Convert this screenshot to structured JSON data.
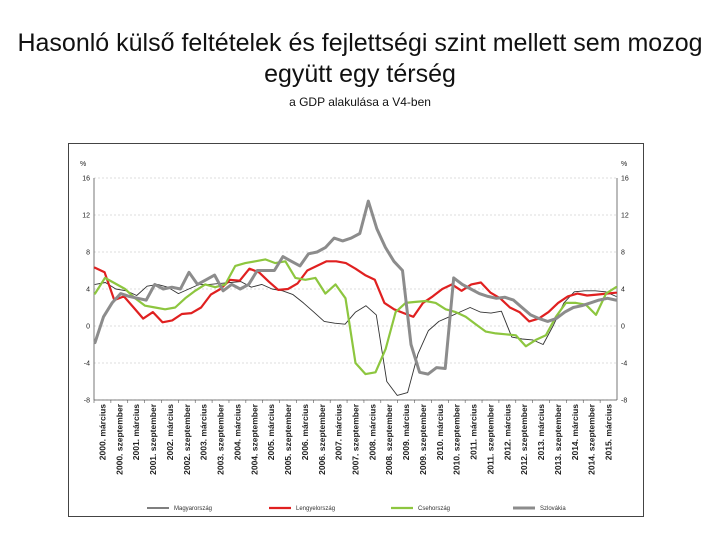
{
  "title": "Hasonló külső feltételek és fejlettségi szint mellett sem mozog együtt egy térség",
  "subtitle": "a GDP alakulása a V4-ben",
  "chart_data": {
    "type": "line",
    "yunit": "%",
    "ylim": [
      -8,
      16
    ],
    "yticks": [
      -8,
      -4,
      0,
      4,
      8,
      12,
      16
    ],
    "x_labels": [
      "2000. március",
      "2000. szeptember",
      "2001. március",
      "2001. szeptember",
      "2002. március",
      "2002. szeptember",
      "2003. március",
      "2003. szeptember",
      "2004. március",
      "2004. szeptember",
      "2005. március",
      "2005. szeptember",
      "2006. március",
      "2006. szeptember",
      "2007. március",
      "2007. szeptember",
      "2008. március",
      "2008. szeptember",
      "2009. március",
      "2009. szeptember",
      "2010. március",
      "2010. szeptember",
      "2011. március",
      "2011. szeptember",
      "2012. március",
      "2012. szeptember",
      "2013. március",
      "2013. szeptember",
      "2014. március",
      "2014. szeptember",
      "2015. március"
    ],
    "series": [
      {
        "name": "Magyarország",
        "color": "#333333",
        "width": 0.9,
        "values": [
          4.5,
          4.7,
          4.0,
          3.8,
          3.3,
          4.3,
          4.5,
          4.2,
          3.5,
          4.0,
          4.5,
          4.5,
          4.6,
          4.7,
          4.8,
          4.2,
          4.5,
          4.0,
          3.8,
          3.4,
          2.5,
          1.5,
          0.5,
          0.3,
          0.2,
          1.5,
          2.2,
          1.2,
          -6.0,
          -7.5,
          -7.2,
          -3.0,
          -0.5,
          0.5,
          1.0,
          1.5,
          2.0,
          1.5,
          1.4,
          1.6,
          -1.2,
          -1.4,
          -1.5,
          -2.0,
          0.1,
          2.5,
          3.7,
          3.8,
          3.8,
          3.7,
          3.2
        ]
      },
      {
        "name": "Lengyelország",
        "color": "#e02020",
        "width": 2.2,
        "values": [
          6.3,
          5.8,
          2.8,
          3.2,
          2.0,
          0.8,
          1.5,
          0.4,
          0.6,
          1.3,
          1.4,
          2.0,
          3.4,
          4.0,
          5.0,
          4.9,
          6.2,
          5.8,
          4.8,
          3.9,
          4.0,
          4.6,
          6.0,
          6.5,
          7.0,
          7.0,
          6.8,
          6.2,
          5.5,
          5.0,
          2.5,
          1.8,
          1.4,
          1.0,
          2.5,
          3.2,
          4.0,
          4.5,
          3.8,
          4.5,
          4.7,
          3.6,
          3.0,
          2.0,
          1.5,
          0.5,
          0.8,
          1.5,
          2.5,
          3.2,
          3.5,
          3.3,
          3.4,
          3.5,
          3.6
        ]
      },
      {
        "name": "Csehország",
        "color": "#8dc63f",
        "width": 2.2,
        "values": [
          3.5,
          5.2,
          4.6,
          4.0,
          3.0,
          2.2,
          2.0,
          1.8,
          2.0,
          3.0,
          3.8,
          4.5,
          4.2,
          4.5,
          6.5,
          6.8,
          7.0,
          7.2,
          6.8,
          7.0,
          5.2,
          5.0,
          5.2,
          3.5,
          4.5,
          3.0,
          -4.0,
          -5.2,
          -5.0,
          -2.5,
          1.5,
          2.5,
          2.6,
          2.7,
          2.5,
          1.8,
          1.5,
          1.0,
          0.2,
          -0.6,
          -0.8,
          -0.9,
          -1.0,
          -2.2,
          -1.5,
          -1.0,
          1.0,
          2.5,
          2.5,
          2.3,
          1.2,
          3.5,
          4.2
        ]
      },
      {
        "name": "Szlovákia",
        "color": "#8c8c8c",
        "width": 3.0,
        "values": [
          -1.8,
          1.0,
          2.5,
          3.5,
          3.2,
          3.0,
          2.8,
          4.5,
          4.0,
          4.2,
          4.0,
          5.8,
          4.5,
          5.0,
          5.5,
          3.8,
          4.5,
          4.0,
          4.5,
          6.0,
          6.0,
          6.0,
          7.5,
          7.0,
          6.5,
          7.8,
          8.0,
          8.5,
          9.5,
          9.2,
          9.5,
          10.0,
          13.5,
          10.5,
          8.5,
          7.0,
          6.0,
          -2.0,
          -5.0,
          -5.2,
          -4.5,
          -4.6,
          5.2,
          4.5,
          4.0,
          3.5,
          3.2,
          3.0,
          3.1,
          2.8,
          2.0,
          1.2,
          0.8,
          0.5,
          0.8,
          1.5,
          2.0,
          2.2,
          2.5,
          2.8,
          3.0,
          2.8
        ]
      }
    ]
  }
}
